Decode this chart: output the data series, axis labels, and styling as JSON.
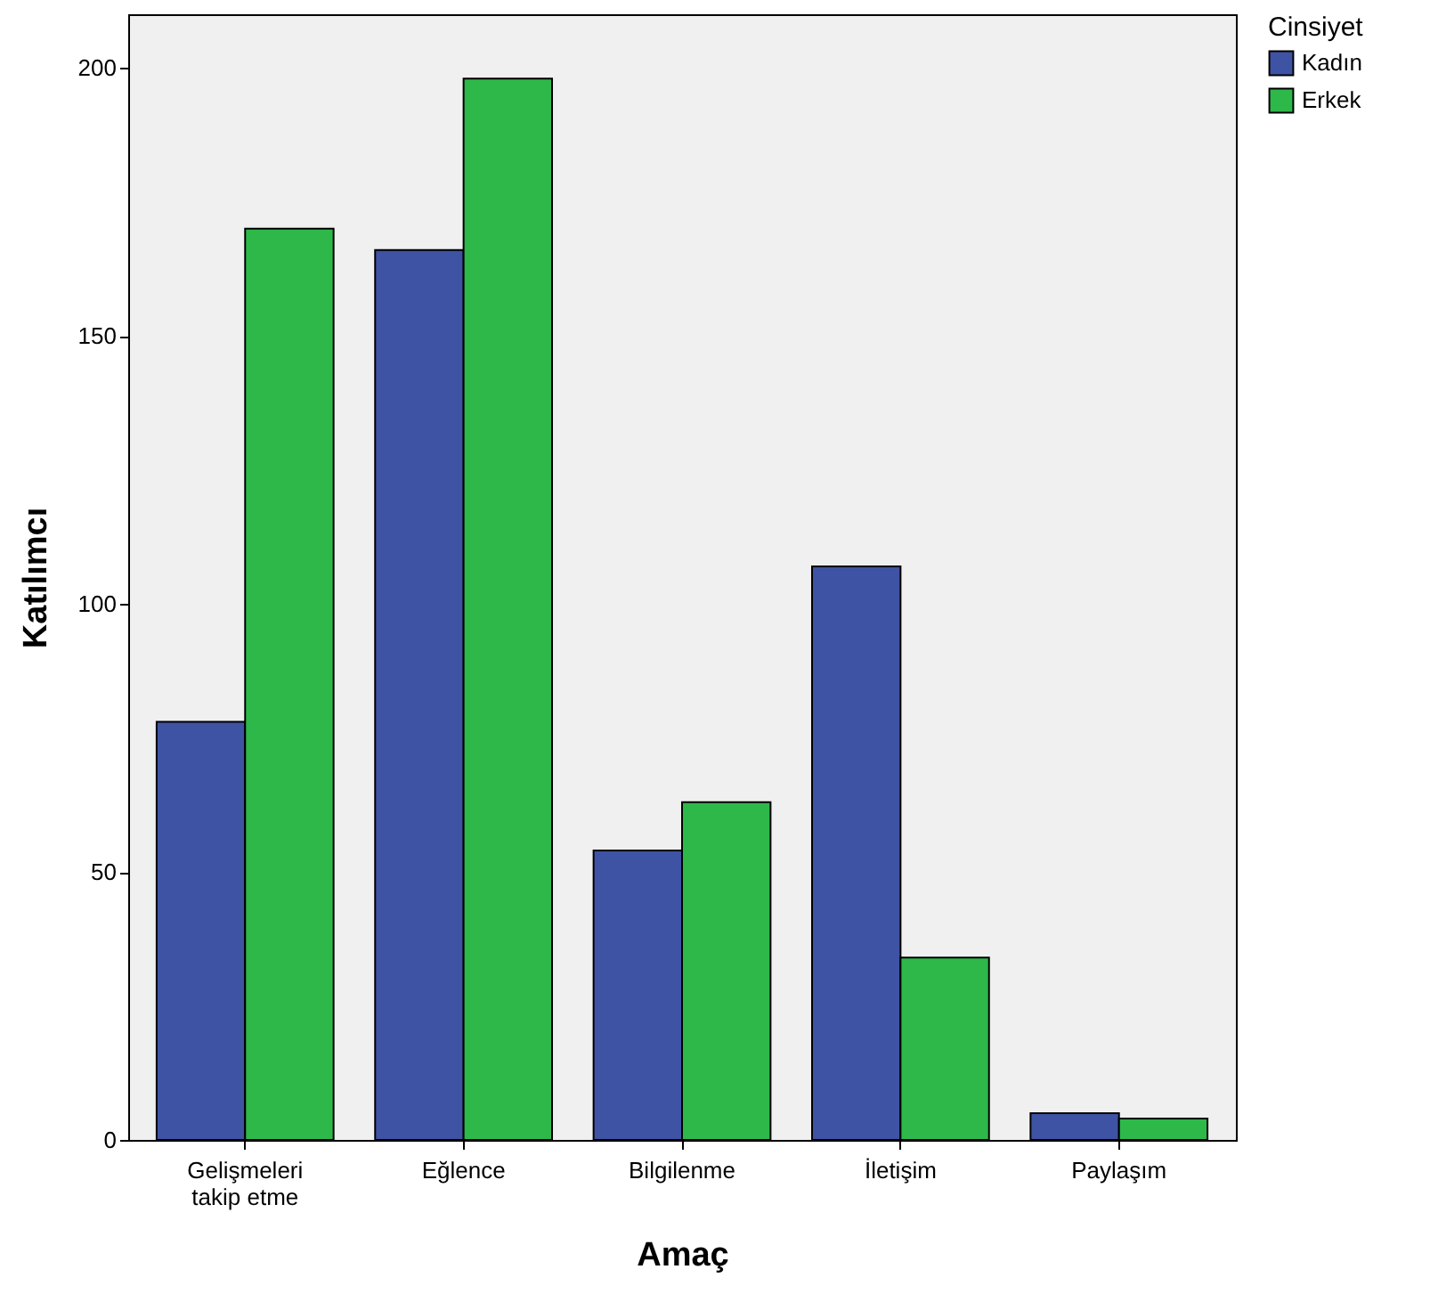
{
  "chart_data": {
    "type": "bar",
    "xlabel": "Amaç",
    "ylabel": "Katılımcı",
    "legend_title": "Cinsiyet",
    "categories": [
      "Gelişmeleri takip etme",
      "Eğlence",
      "Bilgilenme",
      "İletişim",
      "Paylaşım"
    ],
    "series": [
      {
        "name": "Kadın",
        "color": "#3e53a4",
        "values": [
          78,
          166,
          54,
          107,
          5
        ]
      },
      {
        "name": "Erkek",
        "color": "#2eb84a",
        "values": [
          170,
          198,
          63,
          34,
          4
        ]
      }
    ],
    "ylim": [
      0,
      210
    ],
    "yticks": [
      0,
      50,
      100,
      150,
      200
    ],
    "grid": false,
    "legend": "top right"
  }
}
